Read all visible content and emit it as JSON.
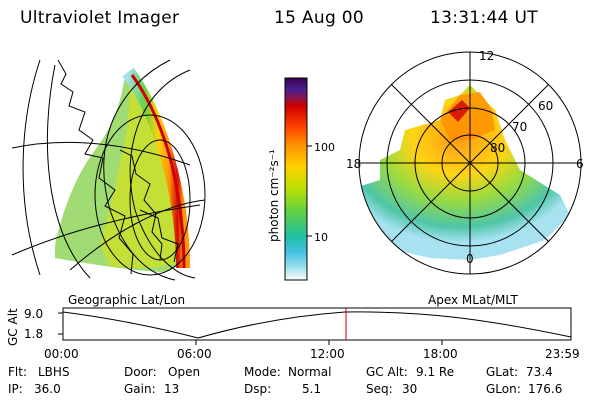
{
  "header": {
    "instrument": "Ultraviolet Imager",
    "date": "15 Aug 00",
    "time": "13:31:44 UT"
  },
  "left_panel": {
    "label": "Geographic Lat/Lon"
  },
  "right_panel": {
    "label": "Apex MLat/MLT",
    "mlt_labels": {
      "top": "12",
      "left": "18",
      "right": "6",
      "bottom": "0"
    },
    "mlat_labels": [
      "60",
      "70",
      "80"
    ]
  },
  "colorbar": {
    "unit_label": "photon cm⁻²s⁻¹",
    "tick_labels": [
      "100",
      "10"
    ],
    "colors": [
      "#3a0050",
      "#4a2090",
      "#d00000",
      "#ff4000",
      "#ff9000",
      "#ffd000",
      "#c0e000",
      "#60d040",
      "#20c0a0",
      "#40c0e0",
      "#a0e0f0",
      "#ffffff"
    ]
  },
  "altitude_plot": {
    "y_axis_label": "GC Alt",
    "y_ticks": [
      "9.0",
      "1.8"
    ],
    "x_ticks": [
      "00:00",
      "06:00",
      "12:00",
      "18:00",
      "23:59"
    ],
    "marker_color": "#cc0000"
  },
  "status": {
    "row1": [
      {
        "key": "Flt:",
        "value": "LBHS"
      },
      {
        "key": "Door:",
        "value": "Open"
      },
      {
        "key": "Mode:",
        "value": "Normal"
      },
      {
        "key": "GC Alt:",
        "value": "9.1 Re"
      },
      {
        "key": "GLat:",
        "value": "73.4"
      }
    ],
    "row2": [
      {
        "key": "IP:",
        "value": "36.0"
      },
      {
        "key": "Gain:",
        "value": "13"
      },
      {
        "key": "Dsp:",
        "value": "5.1"
      },
      {
        "key": "Seq:",
        "value": "30"
      },
      {
        "key": "GLon:",
        "value": "176.6"
      }
    ]
  }
}
